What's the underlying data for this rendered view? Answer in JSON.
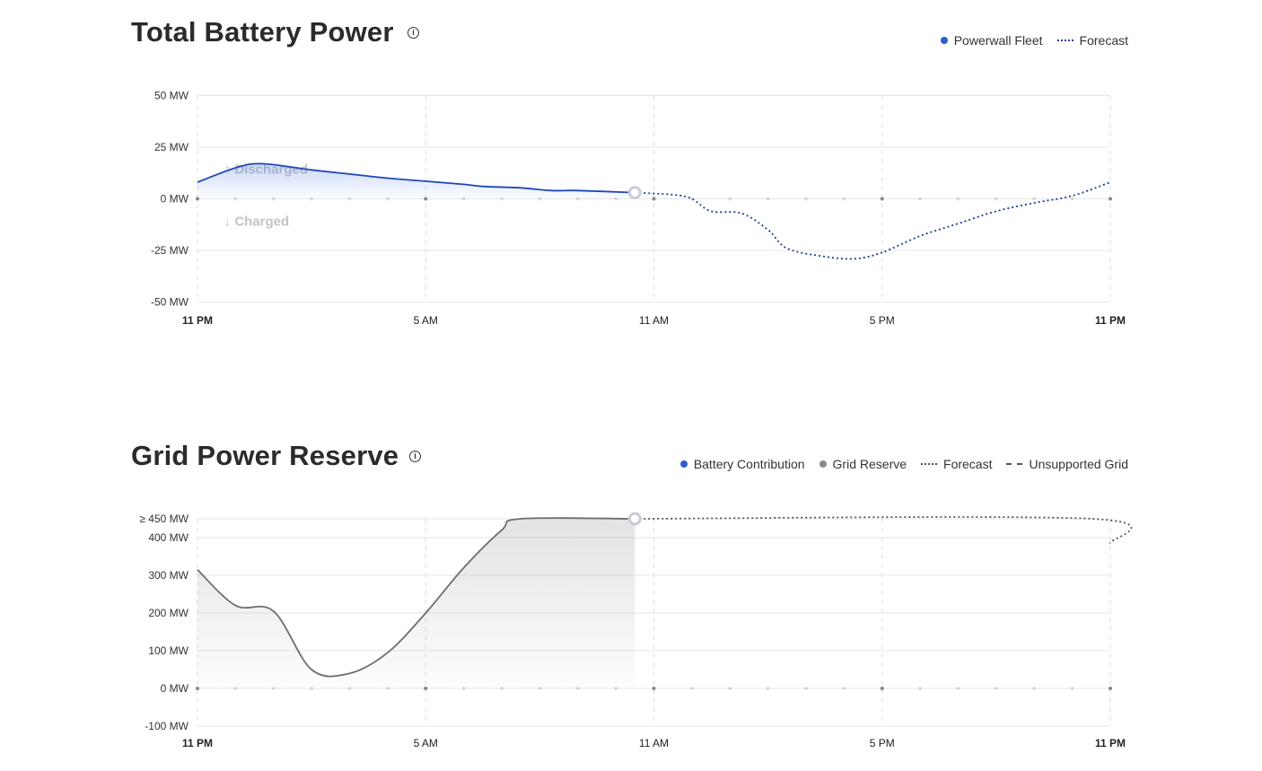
{
  "chart_data": [
    {
      "type": "line",
      "title": "Total Battery Power",
      "ylabel": "",
      "xlabel": "",
      "ylim": [
        -50,
        50
      ],
      "y_ticks": [
        "50 MW",
        "25 MW",
        "0 MW",
        "-25 MW",
        "-50 MW"
      ],
      "y_tick_values": [
        50,
        25,
        0,
        -25,
        -50
      ],
      "x_ticks": [
        "11 PM",
        "5 AM",
        "11 AM",
        "5 PM",
        "11 PM"
      ],
      "x_tick_hours": [
        0,
        6,
        12,
        18,
        24
      ],
      "annotations": [
        "↑ Discharged",
        "↓ Charged"
      ],
      "legend": [
        {
          "name": "Powerwall Fleet",
          "style": "dot",
          "color": "#2f5bd3"
        },
        {
          "name": "Forecast",
          "style": "dotted",
          "color": "#1f3f9a"
        }
      ],
      "series": [
        {
          "name": "Powerwall Fleet",
          "color": "#1e48b8",
          "points": [
            [
              0,
              8
            ],
            [
              1,
              15
            ],
            [
              1.7,
              17
            ],
            [
              3,
              14
            ],
            [
              4,
              12
            ],
            [
              5,
              10
            ],
            [
              6,
              8.5
            ],
            [
              7,
              7
            ],
            [
              7.5,
              6
            ],
            [
              8.5,
              5.3
            ],
            [
              9.3,
              4
            ],
            [
              10,
              4
            ],
            [
              11.5,
              3
            ]
          ]
        },
        {
          "name": "Forecast",
          "color": "#1e3c96",
          "points": [
            [
              11.5,
              3
            ],
            [
              12.5,
              2
            ],
            [
              13,
              0
            ],
            [
              13.5,
              -6
            ],
            [
              14.3,
              -7
            ],
            [
              15,
              -15
            ],
            [
              15.5,
              -24
            ],
            [
              16.5,
              -28
            ],
            [
              17.3,
              -29
            ],
            [
              18,
              -26
            ],
            [
              19,
              -18
            ],
            [
              20,
              -12
            ],
            [
              21,
              -6
            ],
            [
              22,
              -2
            ],
            [
              23,
              1.5
            ],
            [
              24,
              8
            ]
          ]
        }
      ],
      "current_marker_hour": 11.5
    },
    {
      "type": "line",
      "title": "Grid Power Reserve",
      "ylabel": "",
      "xlabel": "",
      "ylim": [
        -100,
        450
      ],
      "y_ticks": [
        "≥ 450 MW",
        "400 MW",
        "300 MW",
        "200 MW",
        "100 MW",
        "0 MW",
        "-100 MW"
      ],
      "y_tick_values": [
        450,
        400,
        300,
        200,
        100,
        0,
        -100
      ],
      "x_ticks": [
        "11 PM",
        "5 AM",
        "11 AM",
        "5 PM",
        "11 PM"
      ],
      "x_tick_hours": [
        0,
        6,
        12,
        18,
        24
      ],
      "legend": [
        {
          "name": "Battery Contribution",
          "style": "dot",
          "color": "#2f5bd3"
        },
        {
          "name": "Grid Reserve",
          "style": "dot",
          "color": "#8a8a8a"
        },
        {
          "name": "Forecast",
          "style": "dotted",
          "color": "#555555"
        },
        {
          "name": "Unsupported Grid",
          "style": "dashed",
          "color": "#555555"
        }
      ],
      "series": [
        {
          "name": "Grid Reserve",
          "color": "#6e6e6e",
          "points": [
            [
              0,
              315
            ],
            [
              1,
              220
            ],
            [
              2,
              205
            ],
            [
              3,
              50
            ],
            [
              4,
              40
            ],
            [
              5,
              95
            ],
            [
              6,
              200
            ],
            [
              7,
              320
            ],
            [
              8,
              420
            ],
            [
              8.5,
              450
            ],
            [
              11.5,
              450
            ]
          ]
        },
        {
          "name": "Forecast",
          "color": "#555555",
          "points": [
            [
              11.5,
              450
            ],
            [
              23.5,
              450
            ],
            [
              24,
              385
            ]
          ]
        }
      ],
      "current_marker_hour": 11.5
    }
  ]
}
